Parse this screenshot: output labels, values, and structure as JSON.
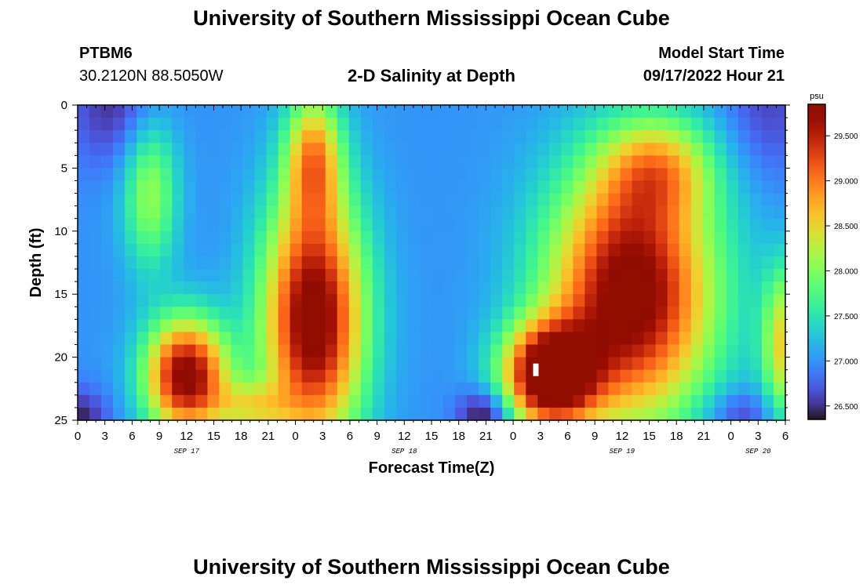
{
  "header": {
    "title": "University of Southern Mississippi Ocean Cube",
    "station_id": "PTBM6",
    "coords": "30.2120N  88.5050W",
    "chart_title": "2-D Salinity at Depth",
    "model_start_label": "Model Start Time",
    "model_start_value": "09/17/2022 Hour 21"
  },
  "footer": {
    "title": "University of Southern Mississippi Ocean Cube"
  },
  "chart_data": {
    "type": "heatmap",
    "title": "2-D Salinity at Depth",
    "xlabel": "Forecast Time(Z)",
    "ylabel": "Depth (ft)",
    "xlim": [
      0,
      78
    ],
    "ylim": [
      25,
      0
    ],
    "x_unit": "hours from SEP 17 00Z",
    "x_tick_values": [
      0,
      3,
      6,
      9,
      12,
      15,
      18,
      21,
      24,
      27,
      30,
      33,
      36,
      39,
      42,
      45,
      48,
      51,
      54,
      57,
      60,
      63,
      66,
      69,
      72,
      75,
      78
    ],
    "x_tick_labels": [
      "0",
      "3",
      "6",
      "9",
      "12",
      "15",
      "18",
      "21",
      "0",
      "3",
      "6",
      "9",
      "12",
      "15",
      "18",
      "21",
      "0",
      "3",
      "6",
      "9",
      "12",
      "15",
      "18",
      "21",
      "0",
      "3",
      "6"
    ],
    "date_labels": [
      {
        "text": "SEP 17",
        "hour": 12
      },
      {
        "text": "SEP 18",
        "hour": 36
      },
      {
        "text": "SEP 19",
        "hour": 60
      },
      {
        "text": "SEP 20",
        "hour": 75
      }
    ],
    "y_ticks": [
      0,
      5,
      10,
      15,
      20,
      25
    ],
    "y_tick_labels": [
      "0",
      "5",
      "10",
      "15",
      "20",
      "25"
    ],
    "colorbar": {
      "unit": "psu",
      "min": 26.35,
      "max": 29.85,
      "ticks": [
        26.5,
        27.0,
        27.5,
        28.0,
        28.5,
        29.0,
        29.5
      ],
      "tick_labels": [
        "26.500",
        "27.000",
        "27.500",
        "28.000",
        "28.500",
        "29.000",
        "29.500"
      ],
      "colormap": "turbo"
    },
    "salinity_features_psu": [
      {
        "hour": 12,
        "depth": 20.5,
        "value": 29.6
      },
      {
        "hour": 26,
        "depth": 16,
        "value": 29.6
      },
      {
        "hour": 53,
        "depth": 22,
        "value": 29.85
      },
      {
        "hour": 64,
        "depth": 15,
        "value": 29.6
      },
      {
        "hour": 4,
        "depth": 1,
        "value": 26.5
      },
      {
        "hour": 42,
        "depth": 3,
        "value": 27.0
      },
      {
        "hour": 76,
        "depth": 1,
        "value": 26.5
      }
    ],
    "marker": {
      "hour": 50.5,
      "depth": 21
    }
  }
}
